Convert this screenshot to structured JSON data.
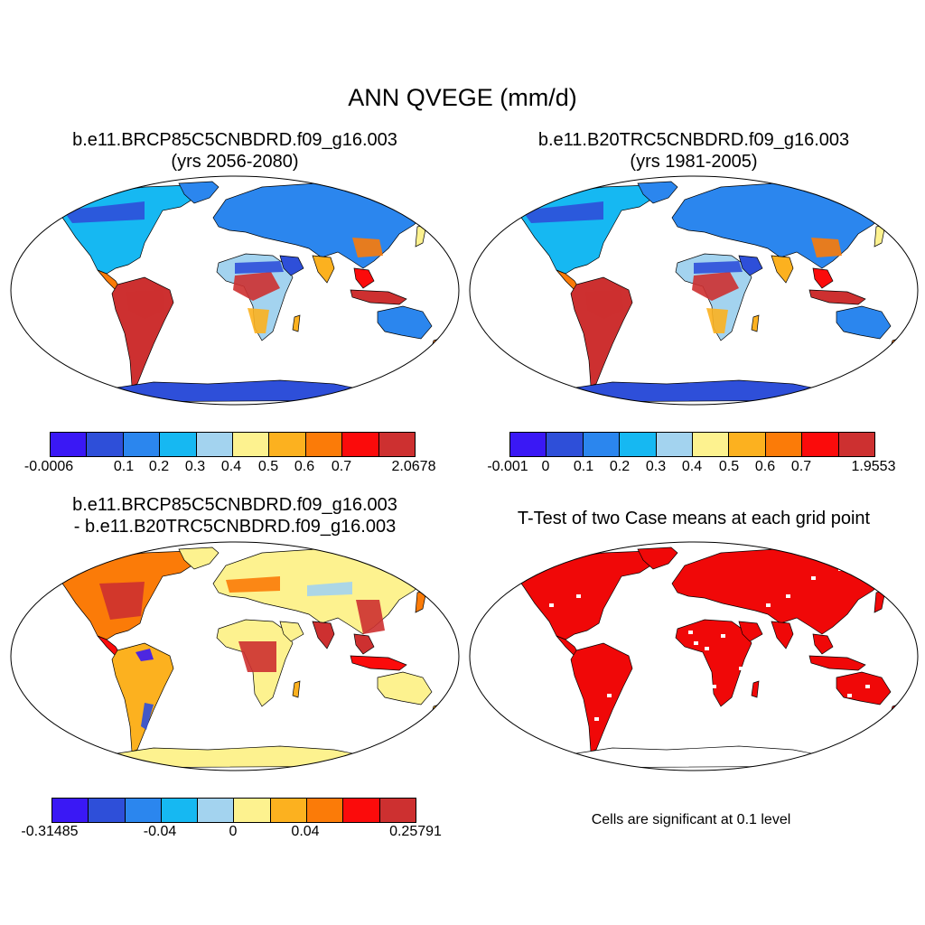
{
  "title": "ANN QVEGE (mm/d)",
  "panels": [
    {
      "title1": "b.e11.BRCP85C5CNBDRD.f09_g16.003",
      "title2": "(yrs 2056-2080)",
      "ticks": [
        "-0.0006",
        "0.1",
        "0.2",
        "0.3",
        "0.4",
        "0.5",
        "0.6",
        "0.7",
        "2.0678"
      ]
    },
    {
      "title1": "b.e11.B20TRC5CNBDRD.f09_g16.003",
      "title2": "(yrs 1981-2005)",
      "ticks": [
        "-0.001",
        "0",
        "0.1",
        "0.2",
        "0.3",
        "0.4",
        "0.5",
        "0.6",
        "0.7",
        "1.9553"
      ]
    },
    {
      "title1": "b.e11.BRCP85C5CNBDRD.f09_g16.003",
      "title2": "- b.e11.B20TRC5CNBDRD.f09_g16.003",
      "ticks": [
        "-0.31485",
        "-0.04",
        "0",
        "0.04",
        "0.25791"
      ]
    },
    {
      "title1": "T-Test of two Case means at each grid point",
      "note": "Cells are significant at 0.1 level"
    }
  ],
  "colors": {
    "scale": [
      "#3a18f5",
      "#2e4fd9",
      "#2b86ee",
      "#16b8f2",
      "#a3d3ef",
      "#fdf28f",
      "#fcb11f",
      "#fb7b08",
      "#fb0b0b",
      "#cd3030"
    ],
    "ocean": "#ffffff",
    "coast": "#000000",
    "sig": "#f00808"
  }
}
